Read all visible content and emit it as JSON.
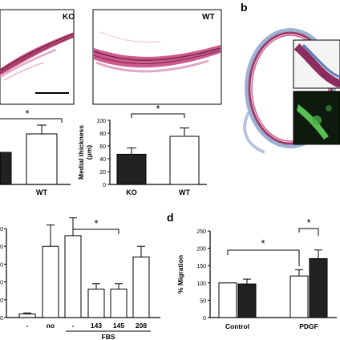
{
  "panels": {
    "b_label": "b",
    "d_label": "d",
    "ko_label": "KO",
    "wt_label": "WT"
  },
  "colors": {
    "he_pink": "#d47aa8",
    "he_dark": "#8b2d5e",
    "trichrome_blue": "#5a7fb8",
    "fluor_green": "#5fd25a"
  },
  "chart_data": [
    {
      "type": "bar",
      "name": "thickness-left-partial",
      "categories": [
        "",
        "WT"
      ],
      "values": [
        null,
        null
      ],
      "significance": "*",
      "ylabel": ""
    },
    {
      "type": "bar",
      "name": "medial-thickness",
      "categories": [
        "KO",
        "WT"
      ],
      "values": [
        47,
        75
      ],
      "errors": [
        10,
        13
      ],
      "fills": [
        "#222222",
        "#ffffff"
      ],
      "ylabel": "Medial thickness\n(μm)",
      "yticks": [
        0,
        20,
        40,
        60,
        80,
        100
      ],
      "ylim": [
        0,
        100
      ],
      "significance": "*"
    },
    {
      "type": "bar",
      "name": "fbs-response",
      "categories": [
        "-",
        "no",
        "-",
        "143",
        "145",
        "208"
      ],
      "group_label": "FBS",
      "values": [
        1,
        20,
        23,
        8,
        8,
        17
      ],
      "errors": [
        0.3,
        6,
        5,
        1.5,
        1.5,
        3
      ],
      "significance": "*"
    },
    {
      "type": "bar",
      "name": "migration",
      "categories": [
        "Control",
        "PDGF"
      ],
      "series": [
        {
          "values": [
            100,
            120
          ],
          "errors": [
            0,
            18
          ]
        },
        {
          "values": [
            97,
            170
          ],
          "errors": [
            14,
            25
          ]
        }
      ],
      "ylabel": "% Migration",
      "yticks": [
        0,
        50,
        100,
        150,
        200,
        250
      ],
      "ylim": [
        0,
        250
      ],
      "significance": [
        "*",
        "*"
      ]
    }
  ],
  "labels": {
    "a_left_wt": "WT",
    "a_right_ko": "KO",
    "a_right_wt": "WT",
    "a_right_ylabel_1": "Medial thickness",
    "a_right_ylabel_2": "(μm)",
    "sig": "*",
    "c_fbs": "FBS",
    "d_ylabel": "% Migration",
    "d_control": "Control",
    "d_pdgf": "PDGF"
  }
}
